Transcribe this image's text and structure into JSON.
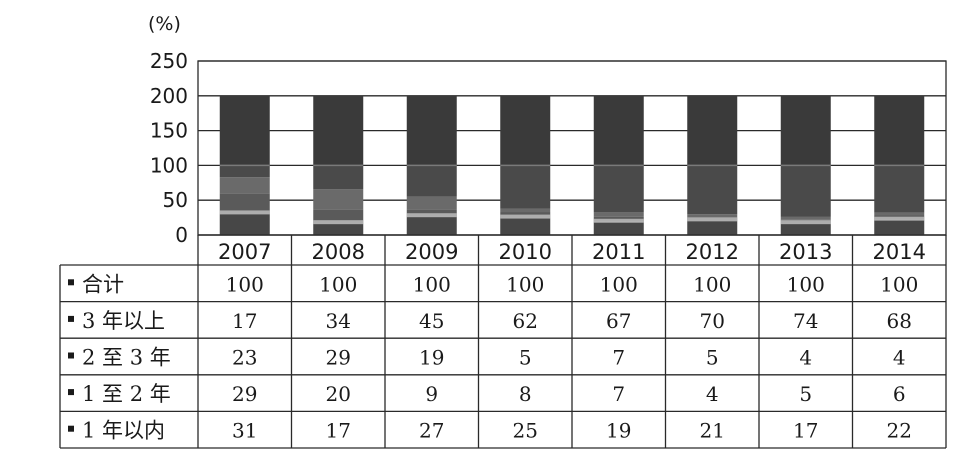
{
  "chart_data": {
    "type": "bar",
    "unit_label": "(%)",
    "ylim": [
      0,
      250
    ],
    "yticks": [
      0,
      50,
      100,
      150,
      200,
      250
    ],
    "grid": true,
    "categories": [
      "2007",
      "2008",
      "2009",
      "2010",
      "2011",
      "2012",
      "2013",
      "2014"
    ],
    "series": [
      {
        "name": "合计",
        "values": [
          100,
          100,
          100,
          100,
          100,
          100,
          100,
          100
        ]
      },
      {
        "name": "3 年以上",
        "values": [
          17,
          34,
          45,
          62,
          67,
          70,
          74,
          68
        ]
      },
      {
        "name": "2 至 3 年",
        "values": [
          23,
          29,
          19,
          5,
          7,
          5,
          4,
          4
        ]
      },
      {
        "name": "1 至 2 年",
        "values": [
          29,
          20,
          9,
          8,
          7,
          4,
          5,
          6
        ]
      },
      {
        "name": "1 年以内",
        "values": [
          31,
          17,
          27,
          25,
          19,
          21,
          17,
          22
        ]
      }
    ],
    "colors": {
      "total": "#3a3a3a",
      "over3": "#4a4a4a",
      "y2to3": "#6a6a6a",
      "y1to2": "#5a5a5a",
      "within1": "#474747",
      "marker": "#c9c9c9"
    }
  }
}
